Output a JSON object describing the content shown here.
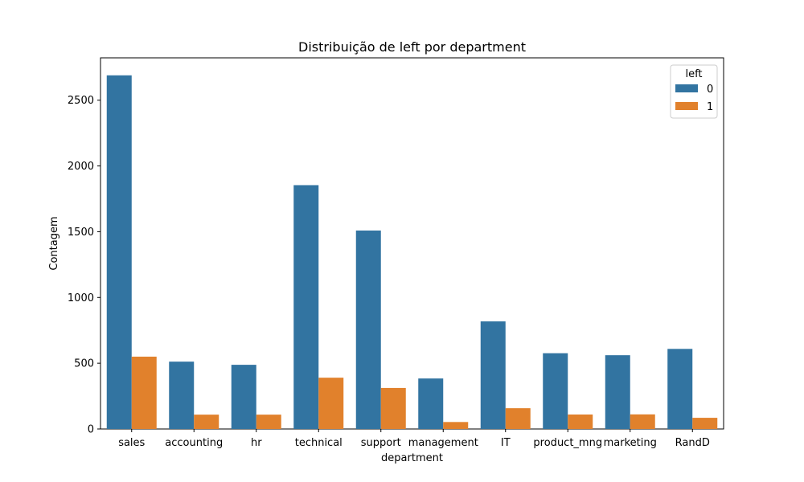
{
  "chart_data": {
    "type": "bar",
    "title": "Distribuição de left por department",
    "xlabel": "department",
    "ylabel": "Contagem",
    "categories": [
      "sales",
      "accounting",
      "hr",
      "technical",
      "support",
      "management",
      "IT",
      "product_mng",
      "marketing",
      "RandD"
    ],
    "series": [
      {
        "name": "0",
        "color": "#3274a1",
        "values": [
          2689,
          512,
          488,
          1854,
          1509,
          384,
          818,
          576,
          561,
          609
        ]
      },
      {
        "name": "1",
        "color": "#e1812c",
        "values": [
          550,
          109,
          109,
          390,
          312,
          53,
          158,
          110,
          111,
          85
        ]
      }
    ],
    "ylim": [
      0,
      2822
    ],
    "yticks": [
      0,
      500,
      1000,
      1500,
      2000,
      2500
    ],
    "legend": {
      "title": "left",
      "placement": "top-right"
    },
    "grid": false
  }
}
